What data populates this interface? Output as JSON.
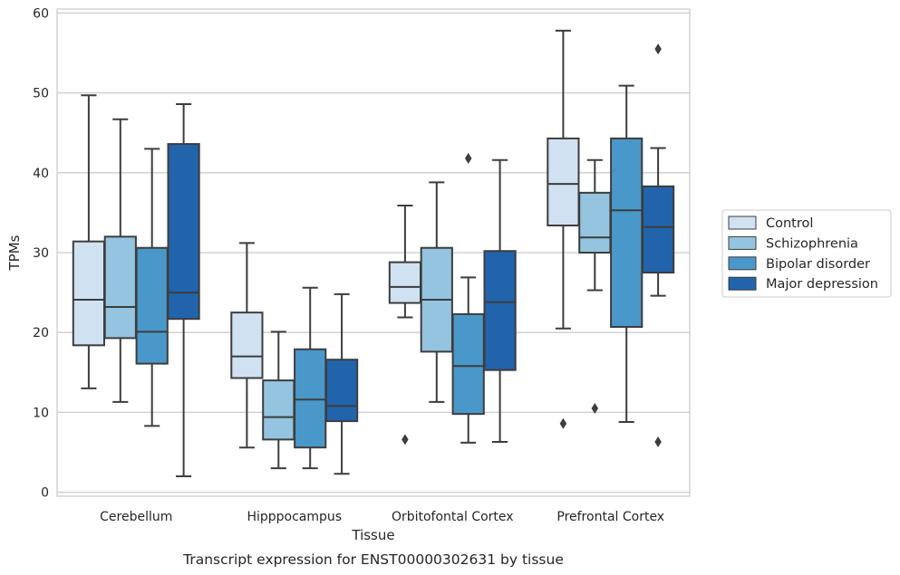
{
  "chart_data": {
    "type": "box",
    "caption": "Transcript expression for ENST00000302631 by tissue",
    "xlabel": "Tissue",
    "ylabel": "TPMs",
    "ylim": [
      -0.5,
      60.5
    ],
    "yticks": [
      0,
      10,
      20,
      30,
      40,
      50,
      60
    ],
    "grid": "horizontal",
    "legend_position": "right",
    "categories": [
      "Cerebellum",
      "Hipppocampus",
      "Orbitofontal Cortex",
      "Prefrontal Cortex"
    ],
    "series": [
      {
        "name": "Control",
        "color": "#d0e1f2",
        "boxes": [
          {
            "whislo": 13.0,
            "q1": 18.4,
            "med": 24.1,
            "q3": 31.4,
            "whishi": 49.7,
            "fliers": []
          },
          {
            "whislo": 5.6,
            "q1": 14.3,
            "med": 17.0,
            "q3": 22.5,
            "whishi": 31.2,
            "fliers": []
          },
          {
            "whislo": 21.9,
            "q1": 23.7,
            "med": 25.7,
            "q3": 28.8,
            "whishi": 35.9,
            "fliers": [
              6.6
            ]
          },
          {
            "whislo": 20.5,
            "q1": 33.4,
            "med": 38.6,
            "q3": 44.3,
            "whishi": 57.8,
            "fliers": [
              8.6
            ]
          }
        ]
      },
      {
        "name": "Schizophrenia",
        "color": "#94c4df",
        "boxes": [
          {
            "whislo": 11.3,
            "q1": 19.3,
            "med": 23.2,
            "q3": 32.0,
            "whishi": 46.7,
            "fliers": []
          },
          {
            "whislo": 3.0,
            "q1": 6.6,
            "med": 9.4,
            "q3": 14.0,
            "whishi": 20.1,
            "fliers": []
          },
          {
            "whislo": 11.3,
            "q1": 17.6,
            "med": 24.1,
            "q3": 30.6,
            "whishi": 38.8,
            "fliers": []
          },
          {
            "whislo": 25.3,
            "q1": 30.0,
            "med": 31.9,
            "q3": 37.5,
            "whishi": 41.6,
            "fliers": [
              10.5
            ]
          }
        ]
      },
      {
        "name": "Bipolar disorder",
        "color": "#4a98c9",
        "boxes": [
          {
            "whislo": 8.3,
            "q1": 16.1,
            "med": 20.1,
            "q3": 30.6,
            "whishi": 43.0,
            "fliers": []
          },
          {
            "whislo": 3.0,
            "q1": 5.6,
            "med": 11.6,
            "q3": 17.9,
            "whishi": 25.6,
            "fliers": []
          },
          {
            "whislo": 6.2,
            "q1": 9.8,
            "med": 15.8,
            "q3": 22.3,
            "whishi": 26.9,
            "fliers": [
              41.8
            ]
          },
          {
            "whislo": 8.8,
            "q1": 20.7,
            "med": 35.3,
            "q3": 44.3,
            "whishi": 50.9,
            "fliers": []
          }
        ]
      },
      {
        "name": "Major depression",
        "color": "#2164ab",
        "boxes": [
          {
            "whislo": 2.0,
            "q1": 21.7,
            "med": 25.0,
            "q3": 43.6,
            "whishi": 48.6,
            "fliers": []
          },
          {
            "whislo": 2.3,
            "q1": 8.9,
            "med": 10.8,
            "q3": 16.6,
            "whishi": 24.8,
            "fliers": []
          },
          {
            "whislo": 6.3,
            "q1": 15.3,
            "med": 23.8,
            "q3": 30.2,
            "whishi": 41.6,
            "fliers": []
          },
          {
            "whislo": 24.6,
            "q1": 27.5,
            "med": 33.2,
            "q3": 38.3,
            "whishi": 43.1,
            "fliers": [
              55.5,
              6.3
            ]
          }
        ]
      }
    ]
  }
}
